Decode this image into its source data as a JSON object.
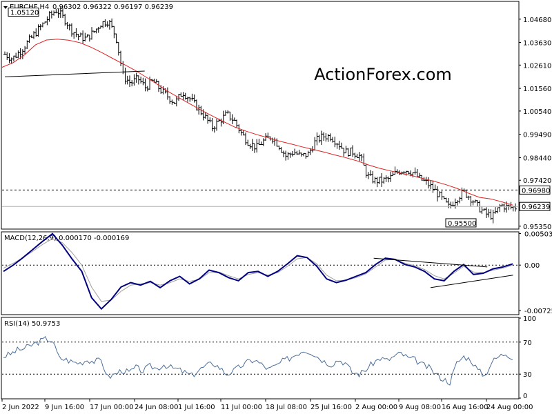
{
  "header": {
    "symbol": "EURCHF,H4",
    "ohlc": "0.96302 0.96322 0.96197 0.96239"
  },
  "watermark": "ActionForex.com",
  "colors": {
    "bars": "#000000",
    "ma": "#e02020",
    "macd_main": "#000080",
    "macd_signal": "#a0a0a0",
    "rsi": "#4a6e9a",
    "dotted": "#000000",
    "watermark": "#d0d0d0"
  },
  "chart_data": [
    {
      "type": "ohlc",
      "title": "EURCHF,H4",
      "ylim": [
        0.9525,
        1.0545
      ],
      "y_ticks": [
        "1.04680",
        "1.03630",
        "1.02610",
        "1.01560",
        "1.00540",
        "0.99490",
        "0.98440",
        "0.97420",
        "0.95350"
      ],
      "y_tick_values": [
        1.0468,
        1.0363,
        1.0261,
        1.0156,
        1.0054,
        0.9949,
        0.9844,
        0.9742,
        0.9535
      ],
      "x_ticks": [
        "2 Jun 2022",
        "9 Jun 16:00",
        "17 Jun 00:00",
        "24 Jun 08:00",
        "1 Jul 16:00",
        "11 Jul 00:00",
        "18 Jul 08:00",
        "25 Jul 16:00",
        "2 Aug 00:00",
        "9 Aug 08:00",
        "16 Aug 16:00",
        "24 Aug 00:00"
      ],
      "closes": [
        1.031,
        1.029,
        1.032,
        1.036,
        1.04,
        1.044,
        1.048,
        1.051,
        1.047,
        1.042,
        1.039,
        1.038,
        1.041,
        1.045,
        1.046,
        1.039,
        1.021,
        1.018,
        1.02,
        1.016,
        1.019,
        1.015,
        1.012,
        1.009,
        1.014,
        1.011,
        1.007,
        1.003,
        0.998,
        1.001,
        1.004,
        1.001,
        0.995,
        0.991,
        0.989,
        0.992,
        0.994,
        0.99,
        0.985,
        0.987,
        0.985,
        0.986,
        0.992,
        0.994,
        0.994,
        0.991,
        0.987,
        0.987,
        0.985,
        0.976,
        0.974,
        0.974,
        0.975,
        0.978,
        0.979,
        0.978,
        0.975,
        0.973,
        0.97,
        0.966,
        0.962,
        0.966,
        0.969,
        0.966,
        0.962,
        0.959,
        0.958,
        0.963,
        0.962,
        0.962
      ],
      "ma": [
        1.0251,
        1.0272,
        1.0306,
        1.0352,
        1.0374,
        1.0378,
        1.0373,
        1.0362,
        1.0342,
        1.0317,
        1.029,
        1.0264,
        1.0237,
        1.0206,
        1.0174,
        1.0141,
        1.0112,
        1.0084,
        1.0056,
        1.003,
        1.0005,
        0.9981,
        0.9963,
        0.9947,
        0.9933,
        0.9918,
        0.9906,
        0.9893,
        0.9881,
        0.9869,
        0.9856,
        0.9843,
        0.9829,
        0.9811,
        0.9796,
        0.9784,
        0.9773,
        0.9762,
        0.9749,
        0.9736,
        0.9722,
        0.9705,
        0.9684,
        0.9665,
        0.9658,
        0.9645,
        0.963
      ],
      "trendline": [
        [
          0,
          1.0208
        ],
        [
          15,
          1.0234
        ]
      ],
      "levels": [
        {
          "label": "0.96980",
          "value": 0.9698,
          "style": "dotted"
        },
        {
          "label": "0.96239",
          "value": 0.96239,
          "style": "current"
        }
      ],
      "annotations": [
        {
          "label": "1.05120",
          "value": 1.0512
        },
        {
          "label": "0.95500",
          "value": 0.955
        }
      ]
    },
    {
      "type": "line",
      "title": "MACD(12,26,9) 0.000170 -0.000169",
      "ylim": [
        -0.0078,
        0.0052
      ],
      "y_ticks": [
        "0.005037",
        "0.00",
        "-0.007251"
      ],
      "y_tick_values": [
        0.005037,
        0.0,
        -0.007251
      ],
      "series": [
        {
          "name": "MACD",
          "values": [
            -0.001,
            0.0,
            0.0012,
            0.0025,
            0.0038,
            0.005,
            0.0032,
            0.001,
            -0.001,
            -0.0052,
            -0.007,
            -0.0055,
            -0.0035,
            -0.0028,
            -0.0032,
            -0.0026,
            -0.0036,
            -0.0025,
            -0.0018,
            -0.003,
            -0.0022,
            -0.0008,
            -0.0012,
            -0.002,
            -0.0025,
            -0.0012,
            -0.001,
            -0.0018,
            -0.001,
            0.0002,
            0.0015,
            0.0012,
            -0.0002,
            -0.0022,
            -0.0028,
            -0.0024,
            -0.0018,
            -0.0012,
            0.0001,
            0.0011,
            0.0009,
            0.0001,
            -0.0003,
            -0.001,
            -0.0022,
            -0.0025,
            -0.001,
            0.0001,
            -0.0015,
            -0.0013,
            -0.0006,
            -0.0003,
            0.0002
          ]
        },
        {
          "name": "Signal",
          "values": [
            -0.0005,
            0.0003,
            0.0012,
            0.0022,
            0.0033,
            0.0042,
            0.0036,
            0.002,
            0.0,
            -0.0035,
            -0.0058,
            -0.0056,
            -0.0042,
            -0.0032,
            -0.003,
            -0.0028,
            -0.0032,
            -0.0028,
            -0.0022,
            -0.0026,
            -0.0023,
            -0.0012,
            -0.0011,
            -0.0017,
            -0.0022,
            -0.0015,
            -0.0012,
            -0.0016,
            -0.0012,
            -0.0002,
            0.001,
            0.0012,
            0.0002,
            -0.0016,
            -0.0025,
            -0.0024,
            -0.002,
            -0.0014,
            -0.0003,
            0.0008,
            0.0009,
            0.0003,
            -0.0001,
            -0.0007,
            -0.0017,
            -0.0022,
            -0.0013,
            -0.0002,
            -0.0011,
            -0.0012,
            -0.0008,
            -0.0005,
            0.0
          ]
        }
      ],
      "trendlines": [
        [
          [
            0.68,
            0.0011
          ],
          [
            0.9,
            -0.0003
          ]
        ],
        [
          [
            0.79,
            -0.0036
          ],
          [
            0.95,
            -0.0016
          ]
        ]
      ]
    },
    {
      "type": "line",
      "title": "RSI(14) 50.9753",
      "ylim": [
        0,
        100
      ],
      "y_ticks": [
        "100",
        "70",
        "30",
        "0"
      ],
      "y_tick_values": [
        100,
        70,
        30,
        0
      ],
      "series": [
        {
          "name": "RSI",
          "values": [
            52,
            55,
            60,
            62,
            66,
            70,
            74,
            72,
            50,
            48,
            45,
            44,
            48,
            46,
            47,
            26,
            30,
            35,
            32,
            38,
            34,
            40,
            37,
            42,
            38,
            36,
            32,
            28,
            35,
            40,
            44,
            38,
            30,
            34,
            40,
            45,
            48,
            42,
            36,
            40,
            46,
            50,
            55,
            60,
            58,
            52,
            46,
            42,
            48,
            44,
            32,
            30,
            36,
            44,
            50,
            47,
            52,
            56,
            50,
            48,
            42,
            38,
            30,
            24,
            20,
            44,
            52,
            48,
            35,
            28,
            45,
            52,
            56,
            51
          ]
        }
      ]
    }
  ]
}
